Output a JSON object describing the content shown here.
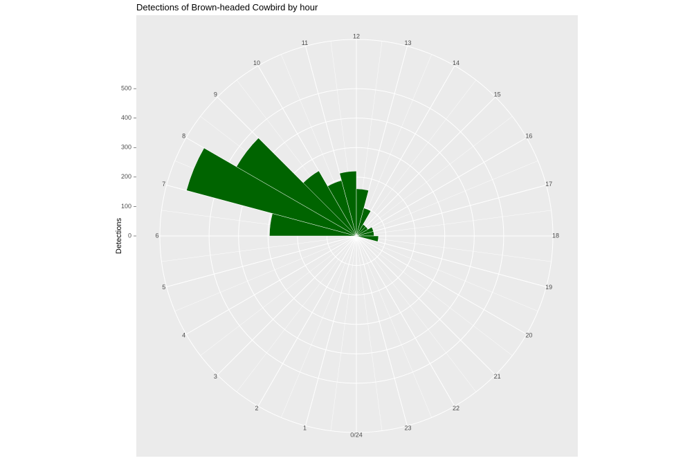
{
  "chart_data": {
    "type": "polar-bar",
    "title": "Detections of Brown-headed Cowbird by hour",
    "y_label": "Detections",
    "categories": [
      "0/24",
      "1",
      "2",
      "3",
      "4",
      "5",
      "6",
      "7",
      "8",
      "9",
      "10",
      "11",
      "12",
      "13",
      "14",
      "15",
      "16",
      "17",
      "18",
      "19",
      "20",
      "21",
      "22",
      "23"
    ],
    "values": [
      3,
      3,
      3,
      3,
      3,
      5,
      295,
      597,
      470,
      255,
      195,
      220,
      160,
      98,
      45,
      45,
      60,
      60,
      75,
      5,
      3,
      3,
      3,
      3
    ],
    "color": "#006400",
    "ylim": [
      0,
      667
    ],
    "yticks": [
      0,
      100,
      200,
      300,
      400,
      500
    ],
    "grid": true
  }
}
